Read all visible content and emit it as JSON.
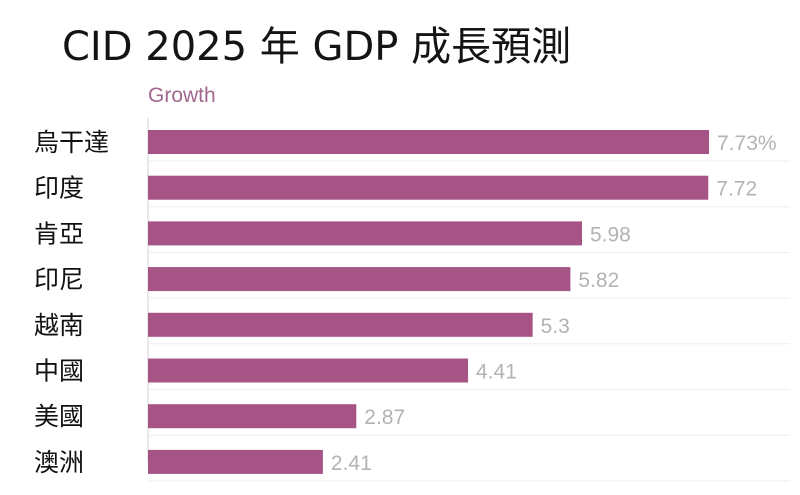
{
  "title": "CID 2025 年 GDP 成長預測",
  "chart_data": {
    "type": "bar",
    "orientation": "horizontal",
    "title": "CID 2025 年 GDP 成長預測",
    "series": [
      {
        "name": "Growth",
        "values": [
          7.73,
          7.72,
          5.98,
          5.82,
          5.3,
          4.41,
          2.87,
          2.41
        ],
        "labels": [
          "7.73%",
          "7.72",
          "5.98",
          "5.82",
          "5.3",
          "4.41",
          "2.87",
          "2.41"
        ]
      }
    ],
    "categories": [
      "烏干達",
      "印度",
      "肯亞",
      "印尼",
      "越南",
      "中國",
      "美國",
      "澳洲"
    ],
    "xlim": [
      0,
      7.73
    ],
    "grid": true,
    "bar_color": "#a55485",
    "label_color": "#b3b3b3"
  }
}
